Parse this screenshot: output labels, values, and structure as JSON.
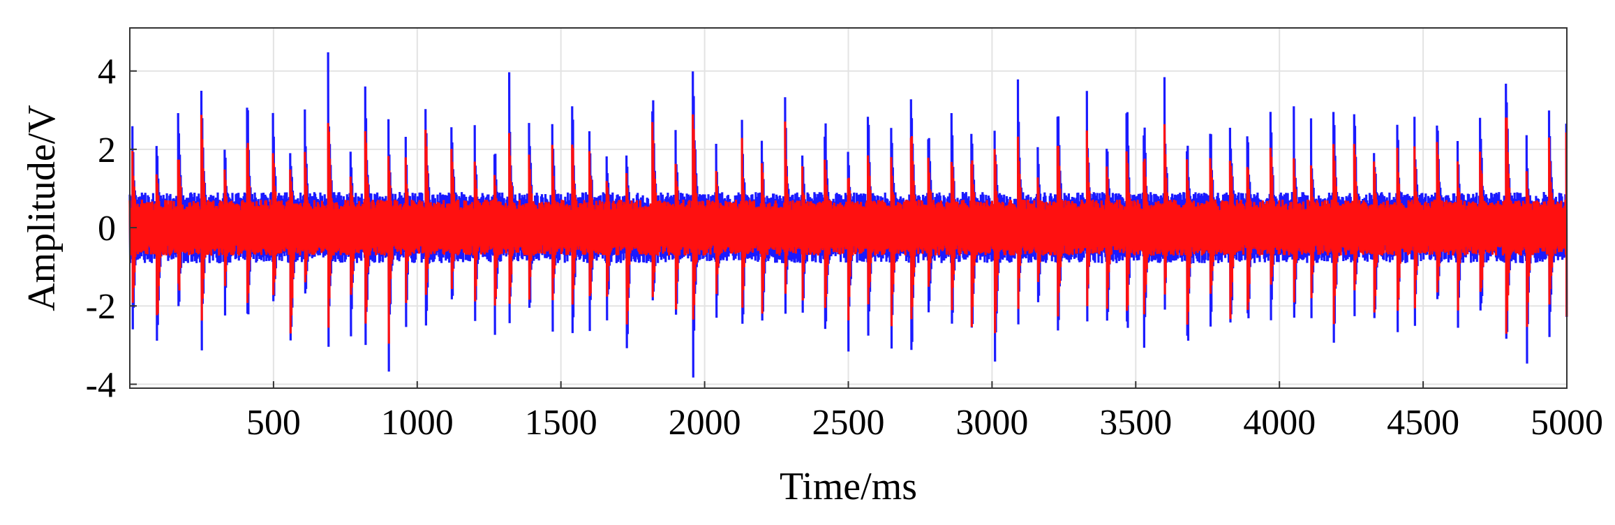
{
  "chart_data": {
    "type": "line",
    "xlabel": "Time/ms",
    "ylabel": "Amplitude/V",
    "xlim": [
      0,
      5000
    ],
    "ylim": [
      -4.1,
      5.1
    ],
    "x_ticks": [
      500,
      1000,
      1500,
      2000,
      2500,
      3000,
      3500,
      4000,
      4500,
      5000
    ],
    "y_ticks": [
      -4,
      -2,
      0,
      2,
      4
    ],
    "x_tick_labels": [
      "500",
      "1000",
      "1500",
      "2000",
      "2500",
      "3000",
      "3500",
      "4000",
      "4500",
      "5000"
    ],
    "y_tick_labels": [
      "-4",
      "-2",
      "0",
      "2",
      "4"
    ],
    "grid": true,
    "series_style": [
      {
        "color": "#1a1aff",
        "envelope_typical": 0.7,
        "max_peak": 5.1,
        "min_peak": -4.1
      },
      {
        "color": "#ff1010",
        "envelope_typical": 0.55,
        "max_peak": 3.6,
        "min_peak": -3.4
      }
    ],
    "impulse_times": [
      10,
      95,
      170,
      250,
      330,
      410,
      500,
      560,
      610,
      690,
      770,
      820,
      900,
      960,
      1030,
      1120,
      1200,
      1270,
      1320,
      1390,
      1470,
      1540,
      1600,
      1660,
      1730,
      1820,
      1900,
      1960,
      2040,
      2130,
      2200,
      2280,
      2340,
      2420,
      2500,
      2570,
      2650,
      2720,
      2780,
      2860,
      2930,
      3010,
      3090,
      3160,
      3230,
      3330,
      3400,
      3470,
      3530,
      3600,
      3680,
      3760,
      3830,
      3890,
      3970,
      4050,
      4110,
      4190,
      4260,
      4330,
      4410,
      4470,
      4550,
      4620,
      4700,
      4790,
      4860,
      4940,
      5000
    ],
    "blue_peaks_pos": [
      2.8,
      2.1,
      3.2,
      4.0,
      2.5,
      3.6,
      3.0,
      2.2,
      3.1,
      4.8,
      2.0,
      4.0,
      3.2,
      2.5,
      3.6,
      3.3,
      2.8,
      2.4,
      4.1,
      3.0,
      3.2,
      3.6,
      3.0,
      2.2,
      2.0,
      3.9,
      2.6,
      5.1,
      2.2,
      3.2,
      2.5,
      3.9,
      2.3,
      3.0,
      2.3,
      3.0,
      2.9,
      3.7,
      2.8,
      3.1,
      2.8,
      3.0,
      3.9,
      2.2,
      3.6,
      3.6,
      2.6,
      3.3,
      3.0,
      3.9,
      2.5,
      3.1,
      2.9,
      2.8,
      3.3,
      3.1,
      2.8,
      3.2,
      3.8,
      2.5,
      3.2,
      3.0,
      3.2,
      2.6,
      3.0,
      4.4,
      2.4,
      3.3,
      3.4
    ],
    "blue_peaks_neg": [
      -2.6,
      -3.2,
      -2.3,
      -3.2,
      -2.4,
      -2.8,
      -2.5,
      -3.7,
      -2.2,
      -3.6,
      -2.8,
      -3.4,
      -4.0,
      -2.6,
      -2.9,
      -2.2,
      -2.7,
      -2.9,
      -3.1,
      -2.4,
      -2.8,
      -3.1,
      -2.9,
      -2.8,
      -3.2,
      -2.3,
      -2.7,
      -3.9,
      -2.6,
      -3.1,
      -3.0,
      -2.3,
      -2.6,
      -3.0,
      -3.2,
      -2.8,
      -3.4,
      -3.4,
      -2.4,
      -2.8,
      -3.4,
      -4.0,
      -2.7,
      -2.3,
      -3.0,
      -2.6,
      -2.9,
      -2.9,
      -3.1,
      -2.3,
      -3.3,
      -2.8,
      -3.0,
      -2.9,
      -2.4,
      -3.0,
      -2.6,
      -3.2,
      -2.5,
      -2.8,
      -3.3,
      -2.9,
      -2.4,
      -3.0,
      -2.8,
      -3.5,
      -3.9,
      -2.9,
      -3.0
    ]
  }
}
